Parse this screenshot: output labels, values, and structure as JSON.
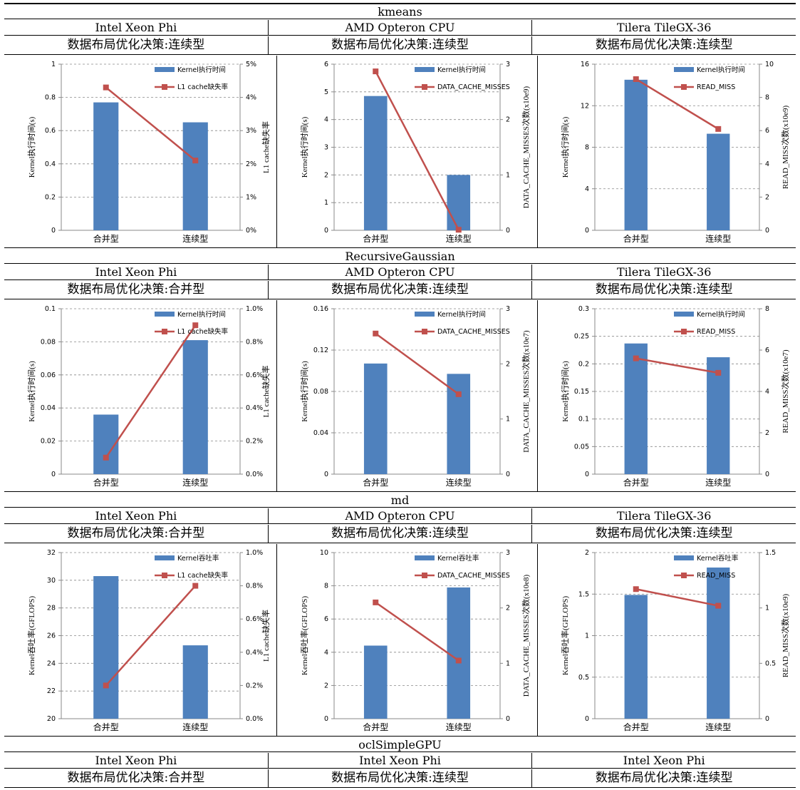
{
  "sections": [
    {
      "title": "kmeans",
      "platforms": [
        "Intel Xeon Phi",
        "AMD Opteron CPU",
        "Tilera TileGX-36"
      ],
      "decisions": [
        "数据布局优化决策:连续型",
        "数据布局优化决策:连续型",
        "数据布局优化决策:连续型"
      ]
    },
    {
      "title": "RecursiveGaussian",
      "platforms": [
        "Intel Xeon Phi",
        "AMD Opteron CPU",
        "Tilera TileGX-36"
      ],
      "decisions": [
        "数据布局优化决策:合并型",
        "数据布局优化决策:连续型",
        "数据布局优化决策:连续型"
      ]
    },
    {
      "title": "md",
      "platforms": [
        "Intel Xeon Phi",
        "AMD Opteron CPU",
        "Tilera TileGX-36"
      ],
      "decisions": [
        "数据布局优化决策:合并型",
        "数据布局优化决策:连续型",
        "数据布局优化决策:连续型"
      ]
    },
    {
      "title": "oclSimpleGPU",
      "platforms": [
        "Intel Xeon Phi",
        "Intel Xeon Phi",
        "Intel Xeon Phi"
      ],
      "decisions": [
        "数据布局优化决策:合并型",
        "数据布局优化决策:连续型",
        "数据布局优化决策:连续型"
      ]
    }
  ],
  "chart_data": [
    {
      "type": "bar",
      "categories": [
        "合并型",
        "连续型"
      ],
      "values": [
        0.77,
        0.65
      ],
      "ylim": [
        0,
        1
      ],
      "yticks": [
        "0",
        "0.2",
        "0.4",
        "0.6",
        "0.8",
        "1"
      ],
      "ylabel": "Kernel执行时间(s)",
      "bar_name": "Kernel执行时间",
      "line": {
        "name": "L1 cache缺失率",
        "values": [
          4.3,
          2.1
        ],
        "ylim": [
          0,
          5
        ],
        "yticks": [
          "0%",
          "1%",
          "2%",
          "3%",
          "4%",
          "5%"
        ]
      },
      "y2label": "L1 cache缺失率",
      "color_bar": "#4f81bd",
      "color_line": "#c0504d"
    },
    {
      "type": "bar",
      "categories": [
        "合并型",
        "连续型"
      ],
      "values": [
        4.85,
        2.0
      ],
      "ylim": [
        0,
        6
      ],
      "yticks": [
        "0",
        "1",
        "2",
        "3",
        "4",
        "5",
        "6"
      ],
      "ylabel": "Kernel执行时间(s)",
      "bar_name": "Kernel执行时间",
      "line": {
        "name": "DATA_CACHE_MISSES",
        "values": [
          2.87,
          0.01
        ],
        "ylim": [
          0,
          3
        ],
        "yticks": [
          "0",
          "1",
          "2",
          "3"
        ]
      },
      "y2label": "DATA_CACHE_MISSES次数(x10e9)",
      "color_bar": "#4f81bd",
      "color_line": "#c0504d"
    },
    {
      "type": "bar",
      "categories": [
        "合并型",
        "连续型"
      ],
      "values": [
        14.5,
        9.3
      ],
      "ylim": [
        0,
        16
      ],
      "yticks": [
        "0",
        "4",
        "8",
        "12",
        "16"
      ],
      "ylabel": "Kernel执行时间(s)",
      "bar_name": "Kernel执行时间",
      "line": {
        "name": "READ_MISS",
        "values": [
          9.1,
          6.1
        ],
        "ylim": [
          0,
          10
        ],
        "yticks": [
          "0",
          "2",
          "4",
          "6",
          "8",
          "10"
        ]
      },
      "y2label": "READ_MISS次数(x10e9)",
      "color_bar": "#4f81bd",
      "color_line": "#c0504d"
    },
    {
      "type": "bar",
      "categories": [
        "合并型",
        "连续型"
      ],
      "values": [
        0.036,
        0.081
      ],
      "ylim": [
        0,
        0.1
      ],
      "yticks": [
        "0",
        "0.02",
        "0.04",
        "0.06",
        "0.08",
        "0.1"
      ],
      "ylabel": "Kernel执行时间(s)",
      "bar_name": "Kernel执行时间",
      "line": {
        "name": "L1 cache缺失率",
        "values": [
          0.1,
          0.9
        ],
        "ylim": [
          0,
          1
        ],
        "yticks": [
          "0.0%",
          "0.2%",
          "0.4%",
          "0.6%",
          "0.8%",
          "1.0%"
        ]
      },
      "y2label": "L1 cache缺失率",
      "color_bar": "#4f81bd",
      "color_line": "#c0504d"
    },
    {
      "type": "bar",
      "categories": [
        "合并型",
        "连续型"
      ],
      "values": [
        0.107,
        0.097
      ],
      "ylim": [
        0,
        0.16
      ],
      "yticks": [
        "0",
        "0.04",
        "0.08",
        "0.12",
        "0.16"
      ],
      "ylabel": "Kernel执行时间(s)",
      "bar_name": "Kernel执行时间",
      "line": {
        "name": "DATA_CACHE_MISSES",
        "values": [
          2.55,
          1.45
        ],
        "ylim": [
          0,
          3
        ],
        "yticks": [
          "0",
          "1",
          "2",
          "3"
        ]
      },
      "y2label": "DATA_CACHE_MISSES次数(x10e7)",
      "color_bar": "#4f81bd",
      "color_line": "#c0504d"
    },
    {
      "type": "bar",
      "categories": [
        "合并型",
        "连续型"
      ],
      "values": [
        0.237,
        0.212
      ],
      "ylim": [
        0,
        0.3
      ],
      "yticks": [
        "0",
        "0.05",
        "0.1",
        "0.15",
        "0.2",
        "0.25",
        "0.3"
      ],
      "ylabel": "Kernel执行时间(s)",
      "bar_name": "Kernel执行时间",
      "line": {
        "name": "READ_MISS",
        "values": [
          5.6,
          4.9
        ],
        "ylim": [
          0,
          8
        ],
        "yticks": [
          "0",
          "2",
          "4",
          "6",
          "8"
        ]
      },
      "y2label": "READ_MISS次数(x10e7)",
      "color_bar": "#4f81bd",
      "color_line": "#c0504d"
    },
    {
      "type": "bar",
      "categories": [
        "合并型",
        "连续型"
      ],
      "values": [
        30.3,
        25.3
      ],
      "ylim": [
        20,
        32
      ],
      "yticks": [
        "20",
        "22",
        "24",
        "26",
        "28",
        "30",
        "32"
      ],
      "ylabel": "Kernel吞吐率(GFLOPS)",
      "bar_name": "Kernel吞吐率",
      "line": {
        "name": "L1 cache缺失率",
        "values": [
          0.2,
          0.8
        ],
        "ylim": [
          0,
          1
        ],
        "yticks": [
          "0.0%",
          "0.2%",
          "0.4%",
          "0.6%",
          "0.8%",
          "1.0%"
        ]
      },
      "y2label": "L1 cache缺失率",
      "color_bar": "#4f81bd",
      "color_line": "#c0504d"
    },
    {
      "type": "bar",
      "categories": [
        "合并型",
        "连续型"
      ],
      "values": [
        4.4,
        7.9
      ],
      "ylim": [
        0,
        10
      ],
      "yticks": [
        "0",
        "2",
        "4",
        "6",
        "8",
        "10"
      ],
      "ylabel": "Kernel吞吐率(GFLOPS)",
      "bar_name": "Kernel吞吐率",
      "line": {
        "name": "DATA_CACHE_MISSES",
        "values": [
          2.1,
          1.05
        ],
        "ylim": [
          0,
          3
        ],
        "yticks": [
          "0",
          "1",
          "2",
          "3"
        ]
      },
      "y2label": "DATA_CACHE_MISSES次数(x10e8)",
      "color_bar": "#4f81bd",
      "color_line": "#c0504d"
    },
    {
      "type": "bar",
      "categories": [
        "合并型",
        "连续型"
      ],
      "values": [
        1.49,
        1.82
      ],
      "ylim": [
        0,
        2
      ],
      "yticks": [
        "0",
        "0.5",
        "1",
        "1.5",
        "2"
      ],
      "ylabel": "Kernel吞吐率(GFLOPS)",
      "bar_name": "Kernel吞吐率",
      "line": {
        "name": "READ_MISS",
        "values": [
          1.17,
          1.02
        ],
        "ylim": [
          0,
          1.5
        ],
        "yticks": [
          "0",
          "0.5",
          "1",
          "1.5"
        ]
      },
      "y2label": "READ_MISS次数(x10e9)",
      "color_bar": "#4f81bd",
      "color_line": "#c0504d"
    }
  ]
}
